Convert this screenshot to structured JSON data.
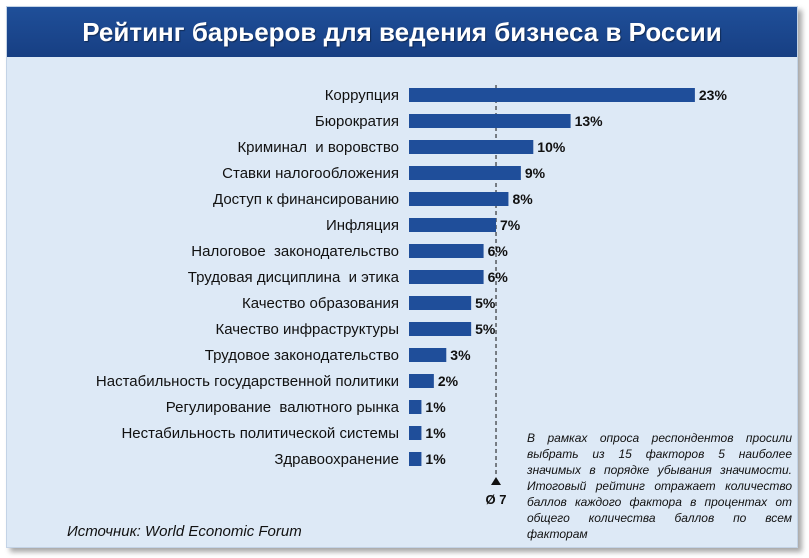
{
  "chart_data": {
    "type": "bar",
    "orientation": "horizontal",
    "title": "Рейтинг барьеров для ведения бизнеса в России",
    "categories": [
      "Коррупция",
      "Бюрократия",
      "Криминал  и воровство",
      "Ставки налогообложения",
      "Доступ к финансированию",
      "Инфляция",
      "Налоговое  законодательство",
      "Трудовая дисциплина  и этика",
      "Качество образования",
      "Качество инфраструктуры",
      "Трудовое законодательство",
      "Настабильность государственной политики",
      "Регулирование  валютного рынка",
      "Нестабильность политической системы",
      "Здравоохранение"
    ],
    "values": [
      23,
      13,
      10,
      9,
      8,
      7,
      6,
      6,
      5,
      5,
      3,
      2,
      1,
      1,
      1
    ],
    "value_labels": [
      "23%",
      "13%",
      "10%",
      "9%",
      "8%",
      "7%",
      "6%",
      "6%",
      "5%",
      "5%",
      "3%",
      "2%",
      "1%",
      "1%",
      "1%"
    ],
    "xlim": [
      0,
      25
    ],
    "average": {
      "value": 7,
      "label": "Ø 7"
    },
    "bar_color": "#1f4e9a",
    "grid": false,
    "legend": "none"
  },
  "source": "Источник: World Economic Forum",
  "note": "В рамках опроса респондентов просили выбрать из 15 факторов 5 наиболее значимых в порядке убывания значимости. Итоговый рейтинг отражает количество баллов каждого фактора в процентах от общего количества баллов по всем факторам"
}
